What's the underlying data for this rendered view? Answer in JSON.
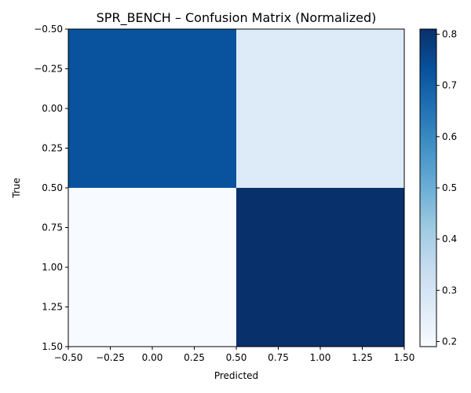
{
  "chart_data": {
    "type": "heatmap",
    "title": "SPR_BENCH – Confusion Matrix (Normalized)",
    "xlabel": "Predicted",
    "ylabel": "True",
    "xlim": [
      -0.5,
      1.5
    ],
    "ylim": [
      1.5,
      -0.5
    ],
    "x_ticks": [
      -0.5,
      -0.25,
      0.0,
      0.25,
      0.5,
      0.75,
      1.0,
      1.25,
      1.5
    ],
    "x_tick_labels": [
      "−0.50",
      "−0.25",
      "0.00",
      "0.25",
      "0.50",
      "0.75",
      "1.00",
      "1.25",
      "1.50"
    ],
    "y_ticks": [
      -0.5,
      -0.25,
      0.0,
      0.25,
      0.5,
      0.75,
      1.0,
      1.25,
      1.5
    ],
    "y_tick_labels": [
      "−0.50",
      "−0.25",
      "0.00",
      "0.25",
      "0.50",
      "0.75",
      "1.00",
      "1.25",
      "1.50"
    ],
    "matrix": [
      [
        0.73,
        0.27
      ],
      [
        0.19,
        0.81
      ]
    ],
    "colormap": "Blues",
    "color_range": [
      0.19,
      0.81
    ],
    "colorbar_ticks": [
      0.2,
      0.3,
      0.4,
      0.5,
      0.6,
      0.7,
      0.8
    ],
    "colorbar_tick_labels": [
      "0.2",
      "0.3",
      "0.4",
      "0.5",
      "0.6",
      "0.7",
      "0.8"
    ],
    "grid": false
  }
}
